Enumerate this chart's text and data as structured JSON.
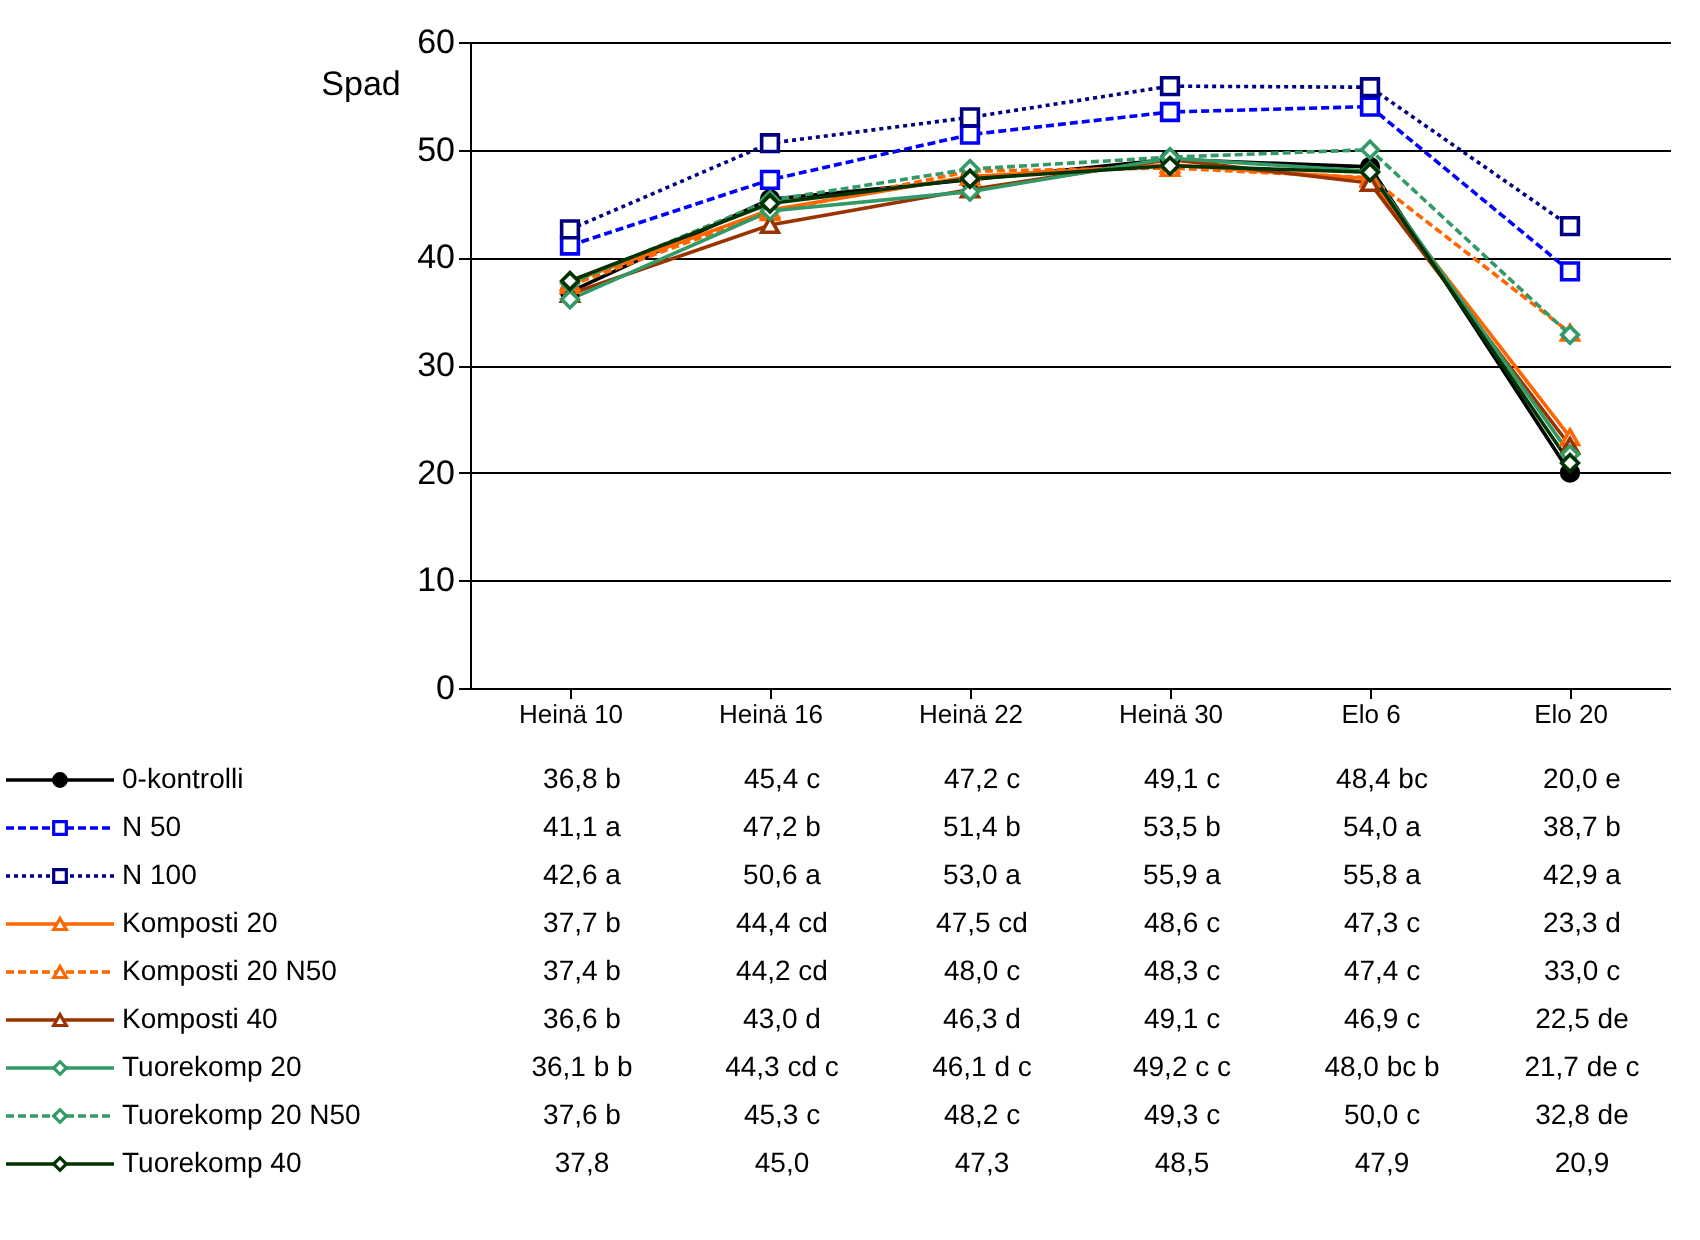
{
  "chart_data": {
    "type": "line",
    "ylabel": "Spad",
    "categories": [
      "Heinä 10",
      "Heinä 16",
      "Heinä 22",
      "Heinä 30",
      "Elo 6",
      "Elo 20"
    ],
    "ylim": [
      0,
      60
    ],
    "yticks": [
      0,
      10,
      20,
      30,
      40,
      50,
      60
    ],
    "grid": "y",
    "legend": "bottom left",
    "series": [
      {
        "name": "0-kontrolli",
        "color": "#000000",
        "marker": "circle",
        "line_style": "solid",
        "values": [
          36.8,
          45.4,
          47.2,
          49.1,
          48.4,
          20.0
        ],
        "value_labels": [
          "36,8 b",
          "45,4 c",
          "47,2 c",
          "49,1 c",
          "48,4 bc",
          "20,0 e"
        ]
      },
      {
        "name": "N 50",
        "color": "#0000ff",
        "marker": "square",
        "line_style": "dashed",
        "values": [
          41.1,
          47.2,
          51.4,
          53.5,
          54.0,
          38.7
        ],
        "value_labels": [
          "41,1 a",
          "47,2 b",
          "51,4 b",
          "53,5 b",
          "54,0 a",
          "38,7 b"
        ]
      },
      {
        "name": "N 100",
        "color": "#000080",
        "marker": "square",
        "line_style": "dotted",
        "values": [
          42.6,
          50.6,
          53.0,
          55.9,
          55.8,
          42.9
        ],
        "value_labels": [
          "42,6 a",
          "50,6 a",
          "53,0 a",
          "55,9 a",
          "55,8 a",
          "42,9 a"
        ]
      },
      {
        "name": "Komposti 20",
        "color": "#ff6600",
        "marker": "triangle",
        "line_style": "solid",
        "values": [
          37.7,
          44.4,
          47.5,
          48.6,
          47.3,
          23.3
        ],
        "value_labels": [
          "37,7 b",
          "44,4 cd",
          "47,5 cd",
          "48,6 c",
          "47,3 c",
          "23,3 d"
        ]
      },
      {
        "name": "Komposti 20 N50",
        "color": "#ff6600",
        "marker": "triangle",
        "line_style": "dashed",
        "values": [
          37.4,
          44.2,
          48.0,
          48.3,
          47.4,
          33.0
        ],
        "value_labels": [
          "37,4 b",
          "44,2 cd",
          "48,0 c",
          "48,3 c",
          "47,4 c",
          "33,0 c"
        ]
      },
      {
        "name": "Komposti 40",
        "color": "#993300",
        "marker": "triangle",
        "line_style": "solid",
        "values": [
          36.6,
          43.0,
          46.3,
          49.1,
          46.9,
          22.5
        ],
        "value_labels": [
          "36,6 b",
          "43,0 d",
          "46,3 d",
          "49,1 c",
          "46,9 c",
          "22,5 de"
        ]
      },
      {
        "name": "Tuorekomp 20",
        "color": "#339966",
        "marker": "diamond",
        "line_style": "solid",
        "values": [
          36.1,
          44.3,
          46.1,
          49.2,
          48.0,
          21.7
        ],
        "value_labels": [
          "36,1 b b",
          "44,3 cd c",
          "46,1 d c",
          "49,2 c c",
          "48,0 bc b",
          "21,7 de c"
        ]
      },
      {
        "name": "Tuorekomp 20 N50",
        "color": "#339966",
        "marker": "diamond",
        "line_style": "dashed",
        "values": [
          37.6,
          45.3,
          48.2,
          49.3,
          50.0,
          32.8
        ],
        "value_labels": [
          "37,6 b",
          "45,3 c",
          "48,2 c",
          "49,3 c",
          "50,0 c",
          "32,8 de"
        ]
      },
      {
        "name": "Tuorekomp 40",
        "color": "#003300",
        "marker": "diamond",
        "line_style": "solid",
        "values": [
          37.8,
          45.0,
          47.3,
          48.5,
          47.9,
          20.9
        ],
        "value_labels": [
          "37,8",
          "45,0",
          "47,3",
          "48,5",
          "47,9",
          "20,9"
        ]
      }
    ]
  }
}
